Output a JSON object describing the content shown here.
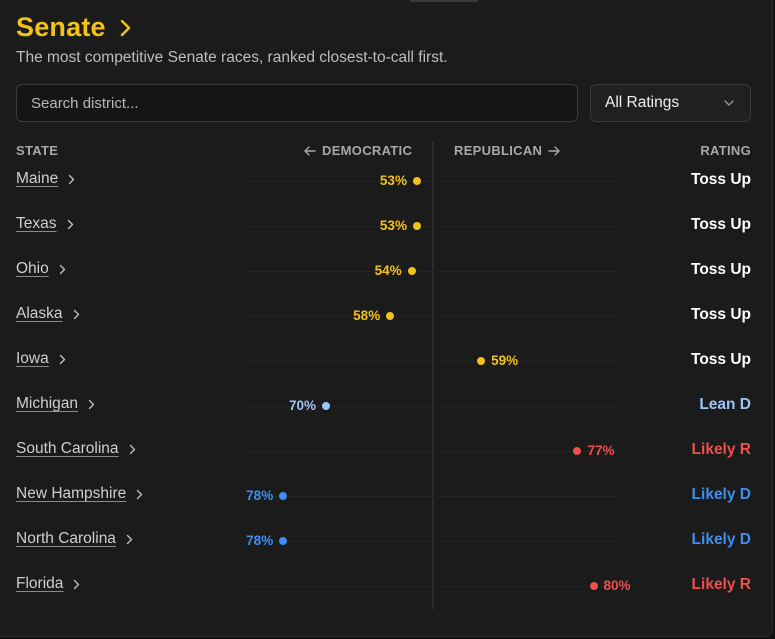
{
  "header": {
    "title": "Senate",
    "subtitle": "The most competitive Senate races, ranked closest-to-call first."
  },
  "search": {
    "placeholder": "Search district..."
  },
  "filter": {
    "selected": "All Ratings"
  },
  "columns": {
    "state": "STATE",
    "democratic": "DEMOCRATIC",
    "republican": "REPUBLICAN",
    "rating": "RATING"
  },
  "colors": {
    "toss_up": "#f2c21b",
    "lean_d": "#9fc3f5",
    "likely_d": "#3d8ef0",
    "likely_r": "#ef4f4f",
    "toss_up_text": "#ffffff"
  },
  "races": [
    {
      "state": "Maine",
      "pct": 53,
      "pct_label": "53%",
      "side": "dem",
      "rating": "Toss Up",
      "rating_key": "toss_up"
    },
    {
      "state": "Texas",
      "pct": 53,
      "pct_label": "53%",
      "side": "dem",
      "rating": "Toss Up",
      "rating_key": "toss_up"
    },
    {
      "state": "Ohio",
      "pct": 54,
      "pct_label": "54%",
      "side": "dem",
      "rating": "Toss Up",
      "rating_key": "toss_up"
    },
    {
      "state": "Alaska",
      "pct": 58,
      "pct_label": "58%",
      "side": "dem",
      "rating": "Toss Up",
      "rating_key": "toss_up"
    },
    {
      "state": "Iowa",
      "pct": 59,
      "pct_label": "59%",
      "side": "rep",
      "rating": "Toss Up",
      "rating_key": "toss_up"
    },
    {
      "state": "Michigan",
      "pct": 70,
      "pct_label": "70%",
      "side": "dem",
      "rating": "Lean D",
      "rating_key": "lean_d"
    },
    {
      "state": "South Carolina",
      "pct": 77,
      "pct_label": "77%",
      "side": "rep",
      "rating": "Likely R",
      "rating_key": "likely_r"
    },
    {
      "state": "New Hampshire",
      "pct": 78,
      "pct_label": "78%",
      "side": "dem",
      "rating": "Likely D",
      "rating_key": "likely_d"
    },
    {
      "state": "North Carolina",
      "pct": 78,
      "pct_label": "78%",
      "side": "dem",
      "rating": "Likely D",
      "rating_key": "likely_d"
    },
    {
      "state": "Florida",
      "pct": 80,
      "pct_label": "80%",
      "side": "rep",
      "rating": "Likely R",
      "rating_key": "likely_r"
    }
  ]
}
